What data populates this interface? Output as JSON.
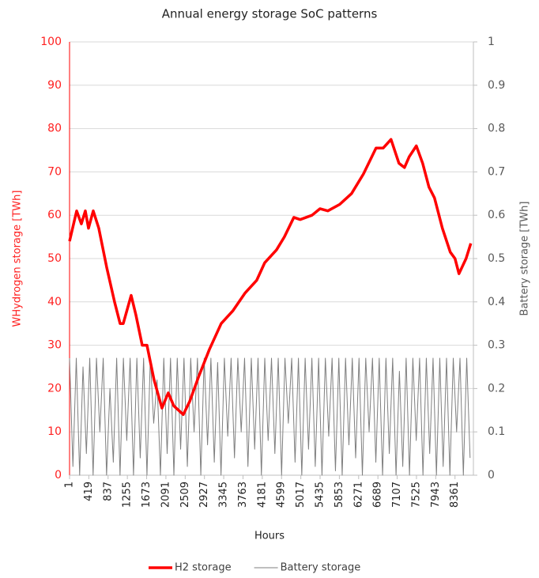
{
  "chart_data": {
    "type": "line",
    "title": "Annual energy storage SoC patterns",
    "xlabel": "Hours",
    "ylabel": "WHydrogen storage [TWh]",
    "y2label": "Battery storage [TWh]",
    "xlim": [
      1,
      8760
    ],
    "xticks": [
      1,
      419,
      837,
      1255,
      1673,
      2091,
      2509,
      2927,
      3345,
      3763,
      4181,
      4599,
      5017,
      5435,
      5853,
      6271,
      6689,
      7107,
      7525,
      7943,
      8361
    ],
    "ylim": [
      0,
      100
    ],
    "yticks": [
      0,
      10,
      20,
      30,
      40,
      50,
      60,
      70,
      80,
      90,
      100
    ],
    "y2lim": [
      0,
      1
    ],
    "y2ticks": [
      0,
      0.1,
      0.2,
      0.3,
      0.4,
      0.5,
      0.6,
      0.7,
      0.8,
      0.9,
      1
    ],
    "grid": true,
    "legend": "bottom",
    "series": [
      {
        "name": "H2 storage",
        "color": "#ff0000",
        "axis": "y",
        "x": [
          1,
          155,
          257,
          343,
          412,
          515,
          635,
          806,
          977,
          1097,
          1166,
          1337,
          1440,
          1577,
          1680,
          1834,
          2005,
          2142,
          2262,
          2468,
          2605,
          2810,
          3033,
          3290,
          3547,
          3804,
          4061,
          4232,
          4489,
          4660,
          4866,
          5003,
          5260,
          5432,
          5603,
          5860,
          6117,
          6374,
          6648,
          6802,
          6973,
          7145,
          7265,
          7368,
          7522,
          7659,
          7796,
          7916,
          8087,
          8258,
          8361,
          8447,
          8601,
          8704
        ],
        "values": [
          54,
          61,
          58,
          61,
          57,
          61,
          57,
          48,
          40,
          35,
          35,
          41.5,
          37,
          30,
          30,
          22,
          15.5,
          19,
          16,
          14,
          17,
          23,
          29,
          35,
          38,
          42,
          45,
          49,
          52,
          55,
          59.5,
          59,
          60,
          61.5,
          61,
          62.5,
          65,
          69.5,
          75.5,
          75.5,
          77.5,
          72,
          71,
          73.5,
          76,
          72,
          66.5,
          64,
          57,
          51.5,
          50,
          46.5,
          50,
          53.5
        ]
      },
      {
        "name": "Battery storage",
        "color": "#7f7f7f",
        "axis": "y2",
        "x": [
          1,
          74,
          147,
          220,
          293,
          366,
          439,
          512,
          585,
          658,
          731,
          804,
          877,
          950,
          1023,
          1096,
          1169,
          1242,
          1315,
          1388,
          1461,
          1534,
          1607,
          1680,
          1753,
          1826,
          1899,
          1972,
          2045,
          2118,
          2191,
          2264,
          2337,
          2410,
          2483,
          2556,
          2629,
          2702,
          2775,
          2848,
          2921,
          2994,
          3067,
          3140,
          3213,
          3286,
          3359,
          3432,
          3505,
          3578,
          3651,
          3724,
          3797,
          3870,
          3943,
          4016,
          4089,
          4162,
          4235,
          4308,
          4381,
          4454,
          4527,
          4600,
          4673,
          4746,
          4819,
          4892,
          4965,
          5038,
          5111,
          5184,
          5257,
          5330,
          5403,
          5476,
          5549,
          5622,
          5695,
          5768,
          5841,
          5914,
          5987,
          6060,
          6133,
          6206,
          6279,
          6352,
          6425,
          6498,
          6571,
          6644,
          6717,
          6790,
          6863,
          6936,
          7009,
          7082,
          7155,
          7228,
          7301,
          7374,
          7447,
          7520,
          7593,
          7666,
          7739,
          7812,
          7885,
          7958,
          8031,
          8104,
          8177,
          8250,
          8323,
          8396,
          8469,
          8542,
          8615,
          8688
        ],
        "values": [
          0.27,
          0.02,
          0.27,
          0,
          0.25,
          0.05,
          0.27,
          0,
          0.27,
          0.1,
          0.27,
          0,
          0.2,
          0.03,
          0.27,
          0,
          0.27,
          0.08,
          0.27,
          0,
          0.27,
          0.04,
          0.27,
          0,
          0.27,
          0.12,
          0.22,
          0,
          0.27,
          0.05,
          0.27,
          0,
          0.27,
          0.06,
          0.27,
          0.02,
          0.27,
          0.1,
          0.27,
          0,
          0.27,
          0.07,
          0.27,
          0.03,
          0.26,
          0,
          0.27,
          0.09,
          0.27,
          0.04,
          0.27,
          0.1,
          0.27,
          0.02,
          0.27,
          0.06,
          0.27,
          0,
          0.27,
          0.08,
          0.27,
          0.05,
          0.27,
          0,
          0.27,
          0.12,
          0.27,
          0.03,
          0.27,
          0,
          0.27,
          0.06,
          0.27,
          0.02,
          0.27,
          0,
          0.27,
          0.09,
          0.27,
          0.01,
          0.27,
          0,
          0.27,
          0.07,
          0.27,
          0.04,
          0.27,
          0,
          0.27,
          0.1,
          0.27,
          0.03,
          0.27,
          0,
          0.27,
          0.05,
          0.27,
          0,
          0.24,
          0.02,
          0.27,
          0,
          0.27,
          0.08,
          0.27,
          0,
          0.27,
          0.05,
          0.27,
          0,
          0.27,
          0.02,
          0.27,
          0,
          0.27,
          0.1,
          0.27,
          0,
          0.27,
          0.04
        ]
      }
    ]
  }
}
